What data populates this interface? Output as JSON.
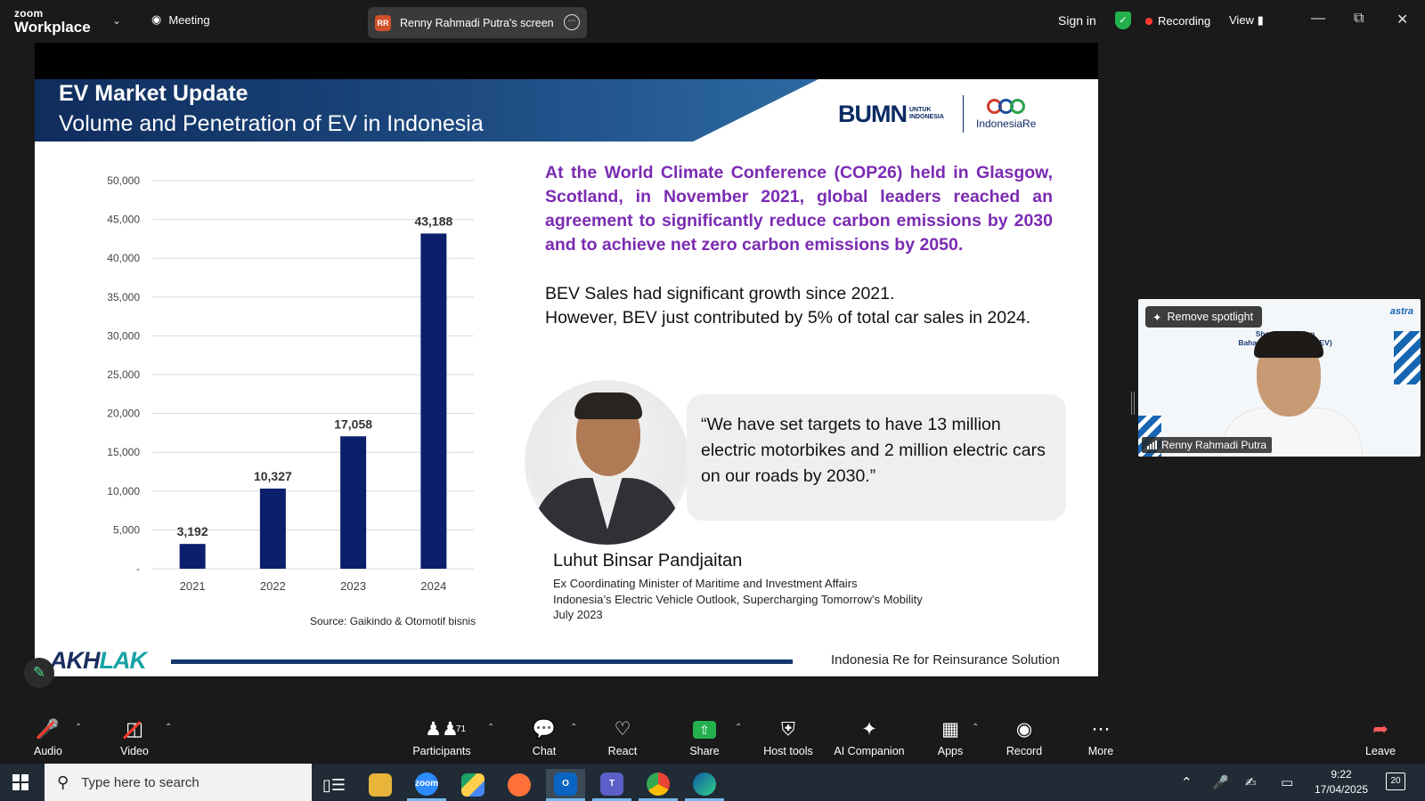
{
  "app": {
    "logo_top": "zoom",
    "logo_bottom": "Workplace",
    "meeting_label": "Meeting",
    "screen_share_initials": "RR",
    "screen_share_label": "Renny Rahmadi Putra's screen",
    "sign_in": "Sign in",
    "recording_label": "Recording",
    "view_label": "View",
    "colors": {
      "recording": "#ff3b30",
      "shield": "#22b14c",
      "share": "#22b14c"
    }
  },
  "slide": {
    "title": "EV Market Update",
    "subtitle": "Volume and Penetration of EV in Indonesia",
    "logo_bumn": "BUMN",
    "logo_bumn_sub": "UNTUK INDONESIA",
    "logo_indonesia_re": "IndonesiaRe",
    "cop_text": "At the World Climate Conference (COP26) held in Glasgow, Scotland, in November 2021, global leaders reached an agreement to significantly reduce carbon emissions by 2030 and to achieve net zero carbon emissions by 2050.",
    "bev_line1": "BEV Sales had significant growth since 2021.",
    "bev_line2": "However, BEV just contributed by 5% of total car sales in 2024.",
    "quote": "“We have set targets to have 13 million electric motorbikes and 2 million electric cars on our roads by 2030.”",
    "person_name": "Luhut Binsar Pandjaitan",
    "person_role_1": "Ex Coordinating Minister of Maritime and Investment Affairs",
    "person_role_2": "Indonesia’s Electric Vehicle Outlook, Supercharging Tomorrow’s Mobility",
    "person_role_3": "July 2023",
    "chart_source": "Source: Gaikindo & Otomotif bisnis",
    "footer_brand_a": "AKH",
    "footer_brand_b": "LAK",
    "footer_text": "Indonesia Re for Reinsurance Solution"
  },
  "chart_data": {
    "type": "bar",
    "categories": [
      "2021",
      "2022",
      "2023",
      "2024"
    ],
    "values": [
      3192,
      10327,
      17058,
      43188
    ],
    "data_labels": [
      "3,192",
      "10,327",
      "17,058",
      "43,188"
    ],
    "y_ticks": [
      "-",
      "5,000",
      "10,000",
      "15,000",
      "20,000",
      "25,000",
      "30,000",
      "35,000",
      "40,000",
      "45,000",
      "50,000"
    ],
    "ylim": [
      0,
      50000
    ],
    "title": "",
    "xlabel": "",
    "ylabel": "",
    "grid": true,
    "bar_color": "#0b1f6b"
  },
  "video_tile": {
    "remove_spotlight": "Remove spotlight",
    "participant_name": "Renny Rahmadi Putra",
    "brand": "astra",
    "session_line1": "Sharing Session",
    "session_line2": "Bahaya & R... Vehicle (EV)"
  },
  "toolbar": {
    "audio": "Audio",
    "video": "Video",
    "participants": "Participants",
    "participants_count": "71",
    "chat": "Chat",
    "react": "React",
    "share": "Share",
    "host_tools": "Host tools",
    "ai_companion": "AI Companion",
    "apps": "Apps",
    "record": "Record",
    "more": "More",
    "leave": "Leave"
  },
  "taskbar": {
    "search_placeholder": "Type here to search",
    "time": "9:22",
    "date": "17/04/2025",
    "notifications": "20"
  }
}
